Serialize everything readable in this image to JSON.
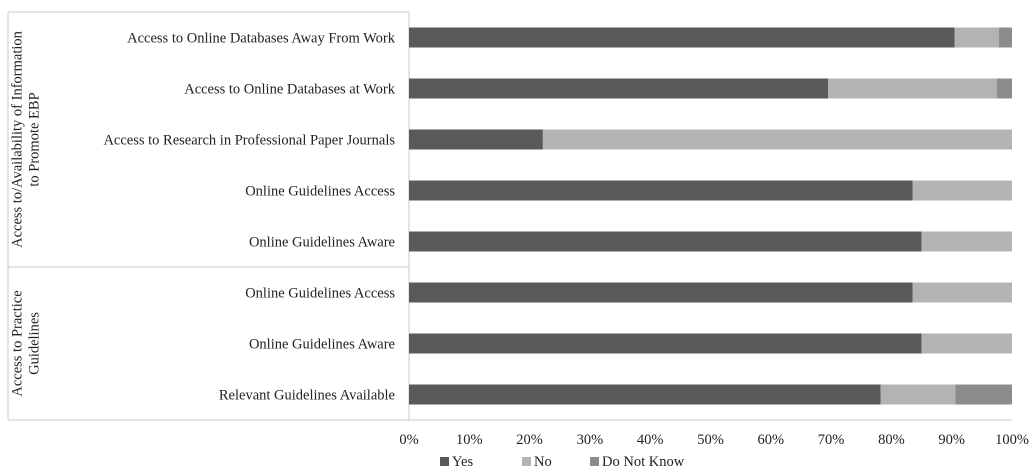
{
  "chart_data": {
    "type": "bar",
    "orientation": "horizontal",
    "stacked": true,
    "groups": [
      {
        "label": "Access to/Availability of Information to Promote EBP",
        "categories": [
          "Access to Online Databases Away From Work",
          "Access to Online Databases at Work",
          "Access to Research in Professional Paper Journals",
          "Online Guidelines Access",
          "Online Guidelines Aware"
        ]
      },
      {
        "label": "Access to Practice Guidelines",
        "categories": [
          "Online Guidelines Access",
          "Online Guidelines Aware",
          "Relevant Guidelines Available"
        ]
      }
    ],
    "categories": [
      "Access to Online Databases Away From Work",
      "Access to Online Databases at Work",
      "Access to Research in Professional Paper Journals",
      "Online Guidelines Access",
      "Online Guidelines Aware",
      "Online Guidelines Access",
      "Online Guidelines Aware",
      "Relevant Guidelines Available"
    ],
    "series": [
      {
        "name": "Yes",
        "color": "#595959",
        "values": [
          90.5,
          69.5,
          22.2,
          83.5,
          85.0,
          83.5,
          85.0,
          78.2
        ]
      },
      {
        "name": "No",
        "color": "#b3b3b3",
        "values": [
          7.3,
          28.0,
          77.8,
          16.5,
          15.0,
          16.5,
          15.0,
          12.4
        ]
      },
      {
        "name": "Do Not Know",
        "color": "#8c8c8c",
        "values": [
          2.2,
          2.5,
          0.0,
          0.0,
          0.0,
          0.0,
          0.0,
          9.4
        ]
      }
    ],
    "xlim": [
      0,
      100
    ],
    "xticks": [
      "0%",
      "10%",
      "20%",
      "30%",
      "40%",
      "50%",
      "60%",
      "70%",
      "80%",
      "90%",
      "100%"
    ],
    "title": "",
    "xlabel": "",
    "ylabel": "",
    "grid": false,
    "legend_position": "bottom"
  }
}
